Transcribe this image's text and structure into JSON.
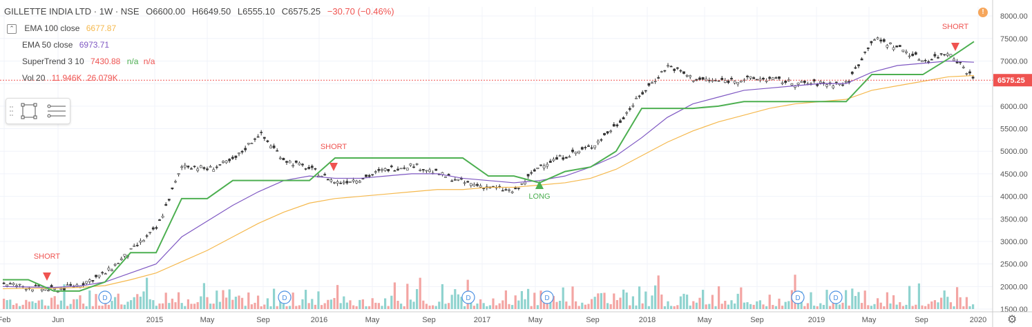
{
  "header": {
    "symbol": "GILLETTE INDIA LTD · 1W · NSE",
    "open": "O6600.00",
    "high": "H6649.50",
    "low": "L6555.10",
    "close": "C6575.25",
    "change": "−30.70 (−0.46%)"
  },
  "indicators": {
    "ema100": {
      "label": "EMA 100 close",
      "value": "6677.87",
      "color": "#f5b84c"
    },
    "ema50": {
      "label": "EMA 50 close",
      "value": "6973.71",
      "color": "#7e57c2"
    },
    "supertrend": {
      "label": "SuperTrend 3 10",
      "value": "7430.88",
      "na1": "n/a",
      "na2": "n/a",
      "up_color": "#4caf50",
      "down_color": "#ef5350"
    },
    "volume": {
      "label": "Vol 20",
      "value1": "11.946K",
      "value2": "26.079K"
    }
  },
  "price_label": "6575.25",
  "colors": {
    "up": "#26a69a",
    "down": "#ef5350",
    "price_line": "#ef5350"
  },
  "chart_data": {
    "type": "line",
    "title": "GILLETTE INDIA LTD · 1W · NSE",
    "ylim": [
      1500,
      8200
    ],
    "y_ticks": [
      "8000.00",
      "7500.00",
      "7000.00",
      "6500.00",
      "6000.00",
      "5500.00",
      "5000.00",
      "4500.00",
      "4000.00",
      "3500.00",
      "3000.00",
      "2500.00",
      "2000.00",
      "1500.00"
    ],
    "x_ticks": [
      "Feb",
      "Jun",
      "2015",
      "May",
      "Sep",
      "2016",
      "May",
      "Sep",
      "2017",
      "May",
      "Sep",
      "2018",
      "May",
      "Sep",
      "2019",
      "May",
      "Sep",
      "2020"
    ],
    "x": [
      "2014-02",
      "2014-04",
      "2014-06",
      "2014-08",
      "2014-10",
      "2014-12",
      "2015-02",
      "2015-03",
      "2015-05",
      "2015-07",
      "2015-08",
      "2015-10",
      "2015-12",
      "2016-02",
      "2016-03",
      "2016-05",
      "2016-07",
      "2016-09",
      "2016-11",
      "2017-01",
      "2017-03",
      "2017-05",
      "2017-06",
      "2017-08",
      "2017-10",
      "2017-12",
      "2018-01",
      "2018-03",
      "2018-05",
      "2018-07",
      "2018-09",
      "2018-11",
      "2019-01",
      "2019-03",
      "2019-04",
      "2019-06",
      "2019-08",
      "2019-10",
      "2019-12"
    ],
    "series": [
      {
        "name": "Price",
        "values": [
          2070,
          1980,
          1920,
          2050,
          2300,
          2800,
          3300,
          4700,
          4600,
          4800,
          5400,
          4800,
          4600,
          4300,
          4400,
          4600,
          4700,
          4500,
          4300,
          4200,
          4100,
          4700,
          4900,
          5100,
          5600,
          6300,
          6900,
          6600,
          6550,
          6600,
          6600,
          6500,
          6500,
          6500,
          7500,
          7300,
          7000,
          7200,
          6575
        ]
      },
      {
        "name": "EMA 50 close",
        "values": [
          2000,
          1990,
          1980,
          2010,
          2100,
          2300,
          2500,
          3100,
          3450,
          3800,
          4100,
          4350,
          4450,
          4400,
          4400,
          4450,
          4500,
          4500,
          4400,
          4350,
          4300,
          4350,
          4450,
          4650,
          4900,
          5300,
          5750,
          6050,
          6200,
          6350,
          6400,
          6450,
          6500,
          6500,
          6750,
          6900,
          6950,
          7000,
          6973
        ]
      },
      {
        "name": "EMA 100 close",
        "values": [
          1950,
          1960,
          1960,
          1980,
          2020,
          2150,
          2300,
          2550,
          2800,
          3100,
          3400,
          3650,
          3850,
          3950,
          4000,
          4050,
          4100,
          4150,
          4150,
          4200,
          4200,
          4250,
          4300,
          4400,
          4600,
          4900,
          5200,
          5450,
          5650,
          5800,
          5950,
          6050,
          6100,
          6150,
          6350,
          6450,
          6550,
          6650,
          6678
        ]
      },
      {
        "name": "SuperTrend 3 10",
        "values": [
          2150,
          2150,
          1900,
          1900,
          2100,
          2750,
          2750,
          3950,
          3950,
          4350,
          4350,
          4350,
          4350,
          4850,
          4850,
          4850,
          4850,
          4850,
          4850,
          4450,
          4450,
          4300,
          4550,
          4650,
          5000,
          5950,
          5950,
          5950,
          6000,
          6100,
          6100,
          6100,
          6100,
          6100,
          6700,
          6700,
          6700,
          7050,
          7430
        ]
      }
    ],
    "annotations": [
      "SHORT",
      "SHORT",
      "LONG",
      "SHORT"
    ],
    "events": [
      "D",
      "D",
      "D",
      "D",
      "D",
      "D"
    ]
  }
}
